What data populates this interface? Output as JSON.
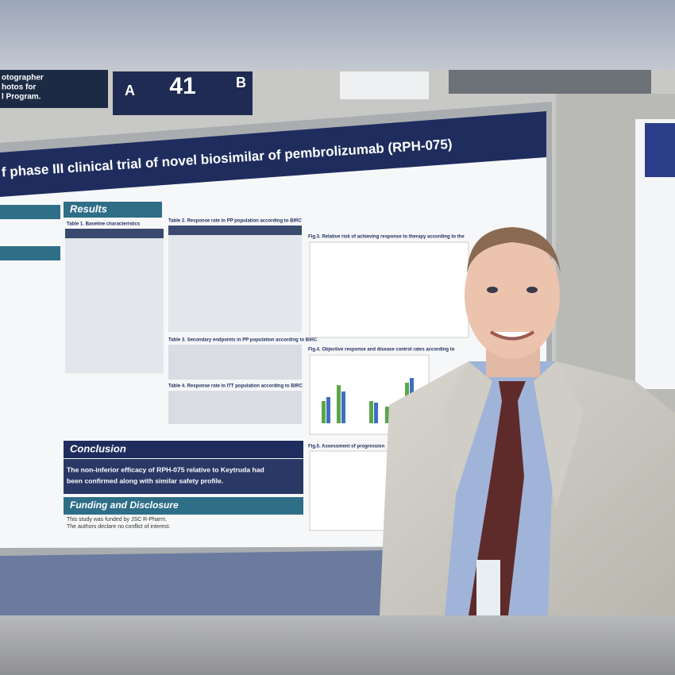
{
  "sign": {
    "lines": [
      "otographer",
      "hotos for",
      "l Program."
    ]
  },
  "board": {
    "left": "A",
    "number": "41",
    "right": "B"
  },
  "poster": {
    "title": "f phase III clinical trial of novel biosimilar of pembrolizumab (RPH-075)",
    "results": "Results",
    "table1": "Table 1. Baseline characteristics",
    "table2": "Table 2. Response rate in PP population according to BIRC",
    "table3": "Table 3. Secondary endpoints in PP population according to BIRC",
    "table4": "Table 4. Response rate in ITT population according to BIRC",
    "fig3": "Fig.3. Relative risk of achieving response to therapy according to the",
    "fig4": "Fig.4. Objective response and disease control rates according to",
    "fig5": "Fig.5. Assessment of progression",
    "conclusion_heading": "Conclusion",
    "conclusion_lines": [
      "The non-inferior efficacy of RPH-075 relative to Keytruda had",
      "been confirmed along with similar safety profile."
    ],
    "funding_heading": "Funding and Disclosure",
    "funding_lines": [
      "This study was funded by JSC R-Pharm.",
      "The authors declare no conflict of interest."
    ]
  }
}
